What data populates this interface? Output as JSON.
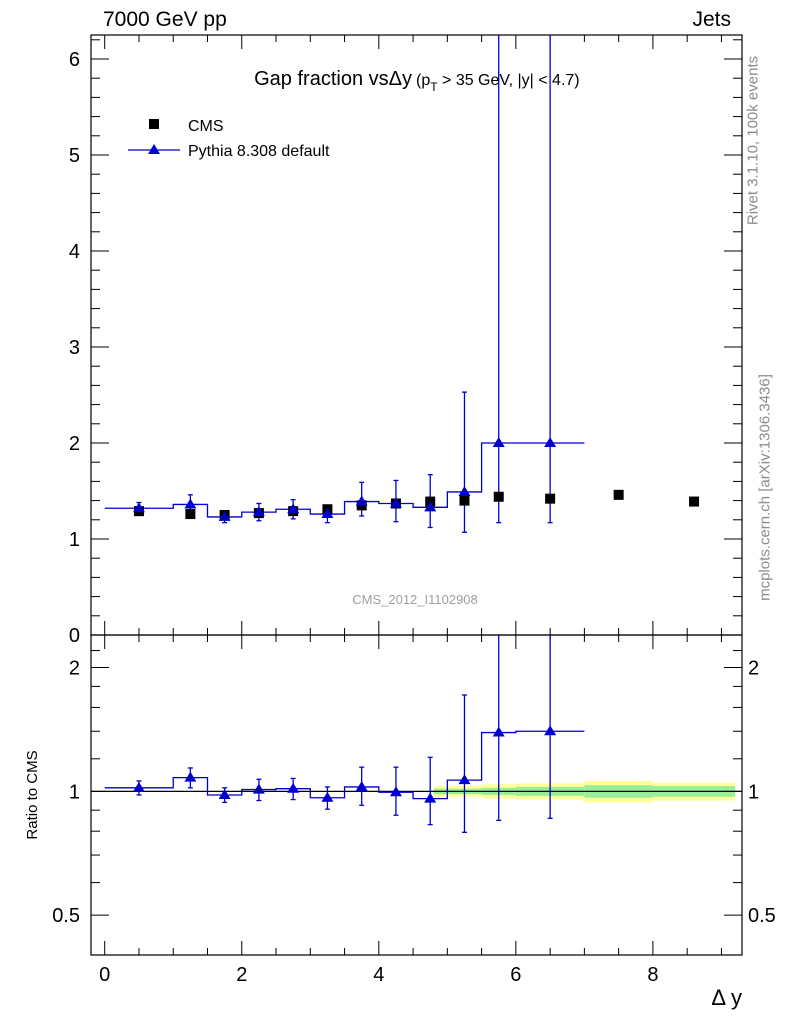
{
  "header": {
    "left": "7000 GeV pp",
    "right": "Jets"
  },
  "side_labels": {
    "rivet": "Rivet 3.1.10,  100k events",
    "mcplots": "mcplots.cern.ch [arXiv:1306.3436]"
  },
  "chart_data": [
    {
      "type": "scatter",
      "panel": "main",
      "title": "Gap fraction vsΔy",
      "title_cut": "(p_T > 35 GeV, |y| < 4.7)",
      "watermark": "CMS_2012_I1102908",
      "xlabel": "Δ y",
      "ylabel": "",
      "xlim": [
        -0.2,
        9.3
      ],
      "ylim": [
        0,
        6.25
      ],
      "y_ticks": [
        0,
        1,
        2,
        3,
        4,
        5,
        6
      ],
      "legend_position": "top-left",
      "legend": [
        "CMS",
        "Pythia 8.308 default"
      ],
      "series": [
        {
          "name": "CMS",
          "marker": "square",
          "color": "#000000",
          "x": [
            0.5,
            1.25,
            1.75,
            2.25,
            2.75,
            3.25,
            3.75,
            4.25,
            4.75,
            5.25,
            5.75,
            6.5,
            7.5,
            8.6
          ],
          "y": [
            1.29,
            1.26,
            1.25,
            1.27,
            1.29,
            1.31,
            1.35,
            1.37,
            1.39,
            1.4,
            1.44,
            1.42,
            1.46,
            1.39
          ]
        },
        {
          "name": "Pythia 8.308 default",
          "marker": "triangle",
          "color": "#0000cc",
          "x": [
            0.5,
            1.25,
            1.75,
            2.25,
            2.75,
            3.25,
            3.75,
            4.25,
            4.75,
            5.25,
            5.75,
            6.5
          ],
          "x_low": [
            0.0,
            1.0,
            1.5,
            2.0,
            2.5,
            3.0,
            3.5,
            4.0,
            4.5,
            5.0,
            5.5,
            6.0
          ],
          "x_high": [
            1.0,
            1.5,
            2.0,
            2.5,
            3.0,
            3.5,
            4.0,
            4.5,
            5.0,
            5.5,
            6.0,
            7.0
          ],
          "y": [
            1.32,
            1.36,
            1.23,
            1.28,
            1.31,
            1.26,
            1.39,
            1.37,
            1.33,
            1.49,
            2.0,
            2.0
          ],
          "y_err_low": [
            0.06,
            0.1,
            0.06,
            0.09,
            0.1,
            0.09,
            0.15,
            0.19,
            0.21,
            0.42,
            0.83,
            0.83
          ],
          "y_err_high": [
            0.06,
            0.1,
            0.06,
            0.09,
            0.1,
            0.09,
            0.2,
            0.24,
            0.34,
            1.04,
            4.25,
            4.25
          ]
        }
      ]
    },
    {
      "type": "line",
      "panel": "ratio",
      "ylabel": "Ratio to CMS",
      "xlabel": "Δ y",
      "xlim": [
        -0.2,
        9.3
      ],
      "ylim": [
        0.4,
        2.4
      ],
      "y_scale": "log",
      "y_ticks": [
        0.5,
        1,
        2
      ],
      "x_ticks": [
        0,
        2,
        4,
        6,
        8
      ],
      "reference_line": 1,
      "uncertainty_band": {
        "x_low": [
          4.8,
          5.5,
          6.0,
          7.0,
          8.0
        ],
        "x_high": [
          5.5,
          6.0,
          7.0,
          8.0,
          9.2
        ],
        "inner_half_width": [
          0.015,
          0.02,
          0.025,
          0.035,
          0.03
        ],
        "outer_half_width": [
          0.03,
          0.04,
          0.045,
          0.06,
          0.05
        ],
        "inner_color": "#99ee99",
        "outer_color": "#ffff99"
      },
      "series": [
        {
          "name": "Pythia 8.308 default",
          "color": "#0000cc",
          "x": [
            0.5,
            1.25,
            1.75,
            2.25,
            2.75,
            3.25,
            3.75,
            4.25,
            4.75,
            5.25,
            5.75,
            6.5
          ],
          "x_low": [
            0.0,
            1.0,
            1.5,
            2.0,
            2.5,
            3.0,
            3.5,
            4.0,
            4.5,
            5.0,
            5.5,
            6.0
          ],
          "x_high": [
            1.0,
            1.5,
            2.0,
            2.5,
            3.0,
            3.5,
            4.0,
            4.5,
            5.0,
            5.5,
            6.0,
            7.0
          ],
          "y": [
            1.02,
            1.08,
            0.98,
            1.01,
            1.015,
            0.965,
            1.025,
            0.995,
            0.96,
            1.065,
            1.39,
            1.4
          ],
          "y_err_low": [
            0.04,
            0.06,
            0.04,
            0.06,
            0.06,
            0.06,
            0.1,
            0.12,
            0.13,
            0.27,
            0.54,
            0.54
          ],
          "y_err_high": [
            0.04,
            0.06,
            0.04,
            0.06,
            0.06,
            0.06,
            0.12,
            0.15,
            0.25,
            0.65,
            1.9,
            1.9
          ]
        }
      ]
    }
  ]
}
